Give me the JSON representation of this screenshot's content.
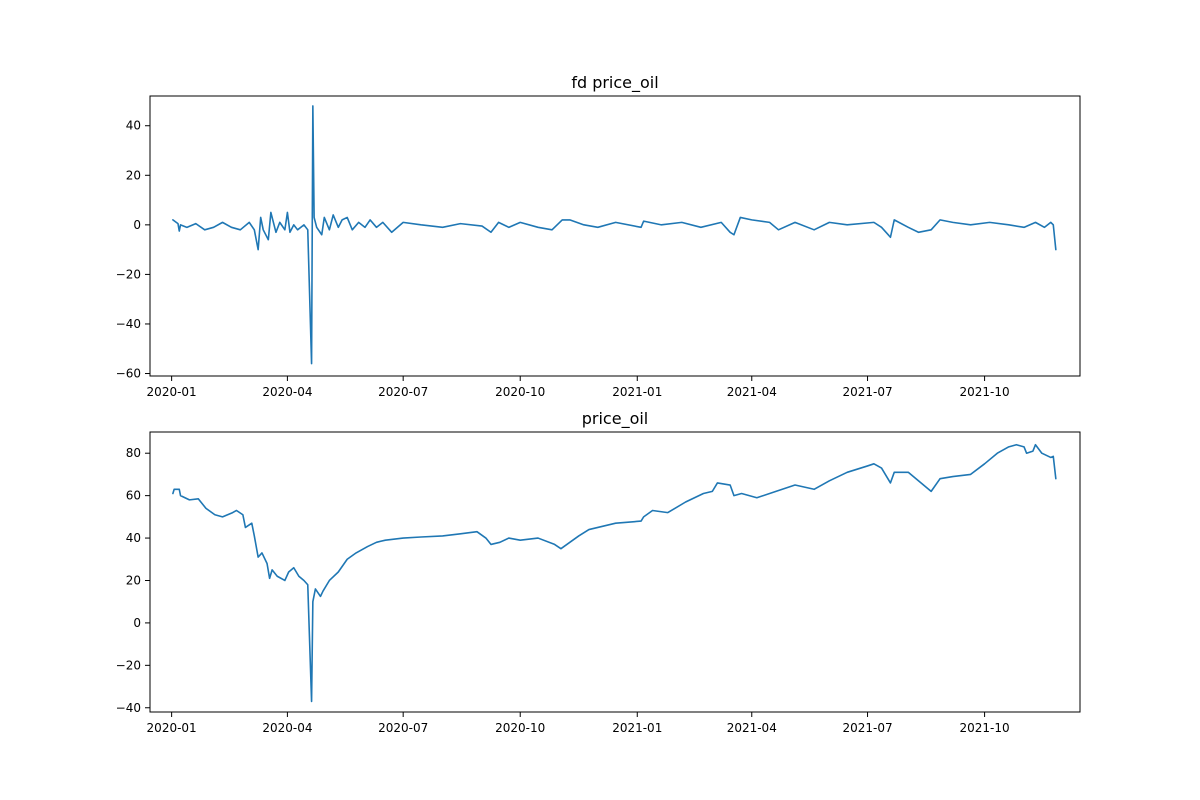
{
  "colors": {
    "series": "#1f77b4",
    "axes": "#000000",
    "background": "#ffffff"
  },
  "chart_data": [
    {
      "type": "line",
      "title": "fd price_oil",
      "xlabel": "",
      "ylabel": "",
      "x_type": "date",
      "xlim": [
        "2019-12-15",
        "2021-12-15"
      ],
      "ylim": [
        -61,
        52
      ],
      "x_ticks": [
        "2020-01",
        "2020-04",
        "2020-07",
        "2020-10",
        "2021-01",
        "2021-04",
        "2021-07",
        "2021-10"
      ],
      "y_ticks": [
        40,
        20,
        0,
        -20,
        -40,
        -60
      ],
      "grid": false,
      "series": [
        {
          "points": [
            [
              "2020-01-02",
              2
            ],
            [
              "2020-01-06",
              0.5
            ],
            [
              "2020-01-07",
              -2.5
            ],
            [
              "2020-01-08",
              0
            ],
            [
              "2020-01-13",
              -1
            ],
            [
              "2020-01-20",
              0.5
            ],
            [
              "2020-01-27",
              -2
            ],
            [
              "2020-02-03",
              -1
            ],
            [
              "2020-02-10",
              1
            ],
            [
              "2020-02-17",
              -1
            ],
            [
              "2020-02-24",
              -2
            ],
            [
              "2020-03-02",
              1
            ],
            [
              "2020-03-06",
              -2
            ],
            [
              "2020-03-09",
              -10
            ],
            [
              "2020-03-11",
              3
            ],
            [
              "2020-03-13",
              -2
            ],
            [
              "2020-03-17",
              -6
            ],
            [
              "2020-03-19",
              5
            ],
            [
              "2020-03-23",
              -3
            ],
            [
              "2020-03-26",
              1
            ],
            [
              "2020-03-30",
              -2
            ],
            [
              "2020-04-01",
              5
            ],
            [
              "2020-04-03",
              -3
            ],
            [
              "2020-04-06",
              0
            ],
            [
              "2020-04-09",
              -2
            ],
            [
              "2020-04-14",
              0
            ],
            [
              "2020-04-17",
              -2
            ],
            [
              "2020-04-20",
              -56
            ],
            [
              "2020-04-21",
              48
            ],
            [
              "2020-04-22",
              3
            ],
            [
              "2020-04-24",
              -1
            ],
            [
              "2020-04-28",
              -4
            ],
            [
              "2020-04-30",
              3
            ],
            [
              "2020-05-04",
              -2
            ],
            [
              "2020-05-07",
              4
            ],
            [
              "2020-05-11",
              -1
            ],
            [
              "2020-05-14",
              2
            ],
            [
              "2020-05-18",
              3
            ],
            [
              "2020-05-22",
              -2
            ],
            [
              "2020-05-27",
              1
            ],
            [
              "2020-06-01",
              -1
            ],
            [
              "2020-06-05",
              2
            ],
            [
              "2020-06-10",
              -1
            ],
            [
              "2020-06-15",
              1
            ],
            [
              "2020-06-22",
              -3
            ],
            [
              "2020-07-01",
              1
            ],
            [
              "2020-07-15",
              0
            ],
            [
              "2020-08-01",
              -1
            ],
            [
              "2020-08-15",
              0.5
            ],
            [
              "2020-09-01",
              -0.5
            ],
            [
              "2020-09-08",
              -3
            ],
            [
              "2020-09-14",
              1
            ],
            [
              "2020-09-22",
              -1
            ],
            [
              "2020-10-01",
              1
            ],
            [
              "2020-10-15",
              -1
            ],
            [
              "2020-10-26",
              -2
            ],
            [
              "2020-11-03",
              2
            ],
            [
              "2020-11-09",
              2
            ],
            [
              "2020-11-20",
              0
            ],
            [
              "2020-12-01",
              -1
            ],
            [
              "2020-12-15",
              1
            ],
            [
              "2021-01-04",
              -1
            ],
            [
              "2021-01-06",
              1.5
            ],
            [
              "2021-01-20",
              0
            ],
            [
              "2021-02-05",
              1
            ],
            [
              "2021-02-20",
              -1
            ],
            [
              "2021-03-08",
              1
            ],
            [
              "2021-03-15",
              -3
            ],
            [
              "2021-03-18",
              -4
            ],
            [
              "2021-03-23",
              3
            ],
            [
              "2021-04-01",
              2
            ],
            [
              "2021-04-15",
              1
            ],
            [
              "2021-04-22",
              -2
            ],
            [
              "2021-05-05",
              1
            ],
            [
              "2021-05-20",
              -2
            ],
            [
              "2021-06-01",
              1
            ],
            [
              "2021-06-15",
              0
            ],
            [
              "2021-07-06",
              1
            ],
            [
              "2021-07-12",
              -1
            ],
            [
              "2021-07-19",
              -5
            ],
            [
              "2021-07-22",
              2
            ],
            [
              "2021-08-02",
              -1
            ],
            [
              "2021-08-10",
              -3
            ],
            [
              "2021-08-20",
              -2
            ],
            [
              "2021-08-27",
              2
            ],
            [
              "2021-09-06",
              1
            ],
            [
              "2021-09-20",
              0
            ],
            [
              "2021-10-05",
              1
            ],
            [
              "2021-10-20",
              0
            ],
            [
              "2021-11-01",
              -1
            ],
            [
              "2021-11-10",
              1
            ],
            [
              "2021-11-17",
              -1
            ],
            [
              "2021-11-22",
              1
            ],
            [
              "2021-11-24",
              0
            ],
            [
              "2021-11-26",
              -10
            ]
          ]
        }
      ]
    },
    {
      "type": "line",
      "title": "price_oil",
      "xlabel": "",
      "ylabel": "",
      "x_type": "date",
      "xlim": [
        "2019-12-15",
        "2021-12-15"
      ],
      "ylim": [
        -42,
        90
      ],
      "x_ticks": [
        "2020-01",
        "2020-04",
        "2020-07",
        "2020-10",
        "2021-01",
        "2021-04",
        "2021-07",
        "2021-10"
      ],
      "y_ticks": [
        80,
        60,
        40,
        20,
        0,
        -20,
        -40
      ],
      "grid": false,
      "series": [
        {
          "points": [
            [
              "2020-01-02",
              61
            ],
            [
              "2020-01-03",
              63
            ],
            [
              "2020-01-07",
              63
            ],
            [
              "2020-01-08",
              60
            ],
            [
              "2020-01-15",
              58
            ],
            [
              "2020-01-22",
              58.5
            ],
            [
              "2020-01-28",
              54
            ],
            [
              "2020-02-04",
              51
            ],
            [
              "2020-02-10",
              50
            ],
            [
              "2020-02-18",
              52
            ],
            [
              "2020-02-21",
              53
            ],
            [
              "2020-02-26",
              51
            ],
            [
              "2020-02-28",
              45
            ],
            [
              "2020-03-04",
              47
            ],
            [
              "2020-03-06",
              41
            ],
            [
              "2020-03-09",
              31
            ],
            [
              "2020-03-12",
              33
            ],
            [
              "2020-03-16",
              28
            ],
            [
              "2020-03-18",
              21
            ],
            [
              "2020-03-20",
              25
            ],
            [
              "2020-03-24",
              22
            ],
            [
              "2020-03-30",
              20
            ],
            [
              "2020-04-02",
              24
            ],
            [
              "2020-04-06",
              26
            ],
            [
              "2020-04-10",
              22
            ],
            [
              "2020-04-14",
              20
            ],
            [
              "2020-04-17",
              18
            ],
            [
              "2020-04-20",
              -37
            ],
            [
              "2020-04-21",
              10
            ],
            [
              "2020-04-23",
              16
            ],
            [
              "2020-04-27",
              12.5
            ],
            [
              "2020-04-29",
              15
            ],
            [
              "2020-05-04",
              20
            ],
            [
              "2020-05-11",
              24
            ],
            [
              "2020-05-18",
              30
            ],
            [
              "2020-05-25",
              33
            ],
            [
              "2020-06-03",
              36
            ],
            [
              "2020-06-10",
              38
            ],
            [
              "2020-06-17",
              39
            ],
            [
              "2020-07-01",
              40
            ],
            [
              "2020-07-15",
              40.5
            ],
            [
              "2020-08-01",
              41
            ],
            [
              "2020-08-15",
              42
            ],
            [
              "2020-08-28",
              43
            ],
            [
              "2020-09-04",
              40
            ],
            [
              "2020-09-08",
              37
            ],
            [
              "2020-09-15",
              38
            ],
            [
              "2020-09-22",
              40
            ],
            [
              "2020-10-01",
              39
            ],
            [
              "2020-10-15",
              40
            ],
            [
              "2020-10-28",
              37
            ],
            [
              "2020-11-02",
              35
            ],
            [
              "2020-11-09",
              38
            ],
            [
              "2020-11-16",
              41
            ],
            [
              "2020-11-24",
              44
            ],
            [
              "2020-12-01",
              45
            ],
            [
              "2020-12-15",
              47
            ],
            [
              "2021-01-04",
              48
            ],
            [
              "2021-01-06",
              50
            ],
            [
              "2021-01-13",
              53
            ],
            [
              "2021-01-25",
              52
            ],
            [
              "2021-02-08",
              57
            ],
            [
              "2021-02-22",
              61
            ],
            [
              "2021-03-01",
              62
            ],
            [
              "2021-03-05",
              66
            ],
            [
              "2021-03-15",
              65
            ],
            [
              "2021-03-18",
              60
            ],
            [
              "2021-03-24",
              61
            ],
            [
              "2021-04-05",
              59
            ],
            [
              "2021-04-20",
              62
            ],
            [
              "2021-05-05",
              65
            ],
            [
              "2021-05-20",
              63
            ],
            [
              "2021-06-01",
              67
            ],
            [
              "2021-06-15",
              71
            ],
            [
              "2021-07-01",
              74
            ],
            [
              "2021-07-06",
              75
            ],
            [
              "2021-07-12",
              73
            ],
            [
              "2021-07-19",
              66
            ],
            [
              "2021-07-22",
              71
            ],
            [
              "2021-08-02",
              71
            ],
            [
              "2021-08-10",
              67
            ],
            [
              "2021-08-20",
              62
            ],
            [
              "2021-08-27",
              68
            ],
            [
              "2021-09-06",
              69
            ],
            [
              "2021-09-20",
              70
            ],
            [
              "2021-10-01",
              75
            ],
            [
              "2021-10-11",
              80
            ],
            [
              "2021-10-20",
              83
            ],
            [
              "2021-10-26",
              84
            ],
            [
              "2021-11-01",
              83
            ],
            [
              "2021-11-03",
              80
            ],
            [
              "2021-11-08",
              81
            ],
            [
              "2021-11-10",
              84
            ],
            [
              "2021-11-15",
              80
            ],
            [
              "2021-11-22",
              78
            ],
            [
              "2021-11-24",
              78.5
            ],
            [
              "2021-11-26",
              68
            ]
          ]
        }
      ]
    }
  ]
}
